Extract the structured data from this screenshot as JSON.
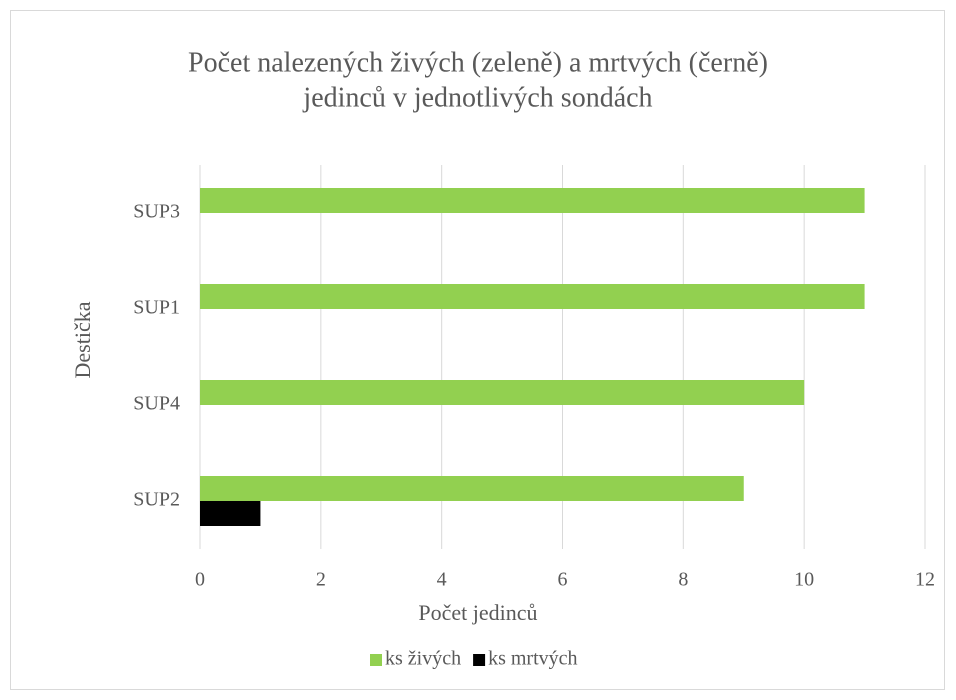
{
  "chart_data": {
    "type": "barh",
    "title": [
      "Počet nalezených živých (zeleně) a mrtvých (černě)",
      "jedinců v jednotlivých sondách"
    ],
    "xlabel": "Počet jedinců",
    "ylabel": "Destička",
    "categories": [
      "SUP2",
      "SUP4",
      "SUP1",
      "SUP3"
    ],
    "series": [
      {
        "name": "ks živých",
        "color": "#92d050",
        "values": [
          9,
          10,
          11,
          11
        ]
      },
      {
        "name": "ks mrtvých",
        "color": "#000000",
        "values": [
          1,
          0,
          0,
          0
        ]
      }
    ],
    "xlim": [
      0,
      12
    ],
    "xticks": [
      0,
      2,
      4,
      6,
      8,
      10,
      12
    ],
    "grid": true,
    "legend": "bottom"
  }
}
